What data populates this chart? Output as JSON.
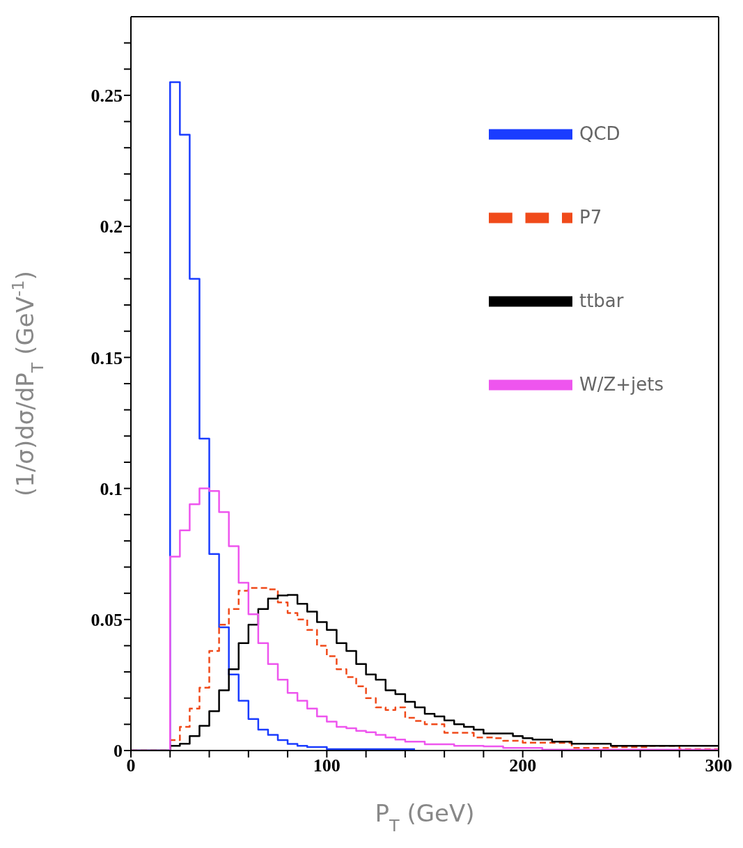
{
  "chart_data": {
    "type": "histogram",
    "xlabel": "P$_{T}$ (GeV)",
    "ylabel": "(1/σ)dσ/dP$_{T}$ (GeV$^{-1}$)",
    "bins": [
      0,
      5,
      10,
      15,
      20,
      25,
      30,
      35,
      40,
      45,
      50,
      55,
      60,
      65,
      70,
      75,
      80,
      85,
      90,
      95,
      100,
      105,
      110,
      115,
      120,
      125,
      130,
      135,
      140,
      145,
      150,
      155,
      160,
      165,
      170,
      175,
      180,
      185,
      190,
      195,
      200,
      205,
      210,
      215,
      220,
      225,
      230,
      235,
      240,
      245,
      250,
      255,
      260,
      265,
      270,
      275,
      280,
      285,
      290,
      295,
      300
    ],
    "series": [
      {
        "name": "QCD",
        "color": "#1a3cff",
        "bins": [
          0,
          5,
          10,
          15,
          20,
          25,
          30,
          35,
          40,
          45,
          50,
          55,
          60,
          65,
          70,
          75,
          80,
          85,
          90,
          95,
          100,
          105,
          110,
          115,
          120,
          125,
          130,
          135,
          140,
          145
        ],
        "values": [
          0,
          0,
          0,
          0,
          0.255,
          0.235,
          0.18,
          0.119,
          0.075,
          0.047,
          0.029,
          0.019,
          0.012,
          0.008,
          0.006,
          0.004,
          0.0025,
          0.0018,
          0.0013,
          0.0013,
          0.0005,
          0.0005,
          0.0005,
          0.0005,
          0.0005,
          0.0005,
          0.0005,
          0.0005,
          0.0005
        ]
      },
      {
        "name": "P7",
        "color": "#f04a1a",
        "line_style": "dashed",
        "values": [
          0,
          0,
          0,
          0,
          0.004,
          0.009,
          0.016,
          0.024,
          0.038,
          0.048,
          0.054,
          0.061,
          0.062,
          0.062,
          0.0615,
          0.0565,
          0.0525,
          0.05,
          0.046,
          0.04,
          0.036,
          0.031,
          0.028,
          0.0245,
          0.02,
          0.0165,
          0.0155,
          0.0165,
          0.0125,
          0.0113,
          0.01,
          0.01,
          0.0068,
          0.0068,
          0.0068,
          0.005,
          0.005,
          0.0047,
          0.0037,
          0.0037,
          0.003,
          0.003,
          0.003,
          0.0029,
          0.0029,
          0.001,
          0.001,
          0.001,
          0.001,
          0.0013,
          0.0013,
          0.0013,
          0.0013,
          0.0018,
          0.0018,
          0.0018,
          0.0005,
          0.0005,
          0.0005,
          0.0005
        ]
      },
      {
        "name": "ttbar",
        "color": "#000000",
        "values": [
          0,
          0,
          0,
          0,
          0.0018,
          0.0026,
          0.0055,
          0.0094,
          0.015,
          0.023,
          0.031,
          0.041,
          0.048,
          0.054,
          0.058,
          0.0592,
          0.0594,
          0.056,
          0.053,
          0.049,
          0.046,
          0.041,
          0.038,
          0.033,
          0.029,
          0.027,
          0.023,
          0.0215,
          0.0186,
          0.0165,
          0.014,
          0.013,
          0.0115,
          0.01,
          0.009,
          0.008,
          0.0065,
          0.0065,
          0.0065,
          0.0055,
          0.0047,
          0.0042,
          0.0042,
          0.0034,
          0.0034,
          0.0026,
          0.0026,
          0.0026,
          0.0026,
          0.0018,
          0.0018,
          0.0018,
          0.0018,
          0.0018,
          0.0018,
          0.0018,
          0.0018,
          0.0018,
          0.0018,
          0.0018
        ]
      },
      {
        "name": "W/Z+jets",
        "color": "#ee55ee",
        "values": [
          0,
          0,
          0,
          0,
          0.074,
          0.084,
          0.094,
          0.1,
          0.099,
          0.091,
          0.078,
          0.064,
          0.052,
          0.041,
          0.033,
          0.027,
          0.022,
          0.019,
          0.016,
          0.013,
          0.011,
          0.009,
          0.0085,
          0.0075,
          0.007,
          0.006,
          0.005,
          0.0042,
          0.0034,
          0.0034,
          0.0024,
          0.0024,
          0.0024,
          0.0018,
          0.0018,
          0.0018,
          0.0016,
          0.0016,
          0.001,
          0.001,
          0.001,
          0.001,
          0.0003,
          0.0003,
          0.0003,
          0.0003,
          0.0003,
          0.0003,
          0.0003,
          0.0003,
          0.0003,
          0.0003,
          0.0003,
          0.0003,
          0.0003,
          0.0003,
          0.0003,
          0.0003,
          0.0003,
          0.0003
        ]
      }
    ],
    "xlim": [
      0,
      300
    ],
    "xticks": [
      0,
      {
        "value": 20,
        "label": null
      },
      {
        "value": 40,
        "label": null
      },
      {
        "value": 60,
        "label": null
      },
      {
        "value": 80,
        "label": null
      },
      100,
      {
        "value": 120,
        "label": null
      },
      {
        "value": 140,
        "label": null
      },
      {
        "value": 160,
        "label": null
      },
      {
        "value": 180,
        "label": null
      },
      200,
      {
        "value": 220,
        "label": null
      },
      {
        "value": 240,
        "label": null
      },
      {
        "value": 260,
        "label": null
      },
      {
        "value": 280,
        "label": null
      },
      300
    ],
    "ylim": [
      0,
      0.28
    ],
    "yticks": [
      0,
      {
        "value": 0.01,
        "label": null
      },
      {
        "value": 0.02,
        "label": null
      },
      {
        "value": 0.03,
        "label": null
      },
      {
        "value": 0.04,
        "label": null
      },
      0.05,
      {
        "value": 0.06,
        "label": null
      },
      {
        "value": 0.07,
        "label": null
      },
      {
        "value": 0.08,
        "label": null
      },
      {
        "value": 0.09,
        "label": null
      },
      0.1,
      {
        "value": 0.11,
        "label": null
      },
      {
        "value": 0.12,
        "label": null
      },
      {
        "value": 0.13,
        "label": null
      },
      {
        "value": 0.14,
        "label": null
      },
      0.15,
      {
        "value": 0.16,
        "label": null
      },
      {
        "value": 0.17,
        "label": null
      },
      {
        "value": 0.18,
        "label": null
      },
      {
        "value": 0.19,
        "label": null
      },
      0.2,
      {
        "value": 0.21,
        "label": null
      },
      {
        "value": 0.22,
        "label": null
      },
      {
        "value": 0.23,
        "label": null
      },
      {
        "value": 0.24,
        "label": null
      },
      0.25,
      {
        "value": 0.26,
        "label": null
      },
      {
        "value": 0.27,
        "label": null
      }
    ],
    "legend": "top right"
  }
}
